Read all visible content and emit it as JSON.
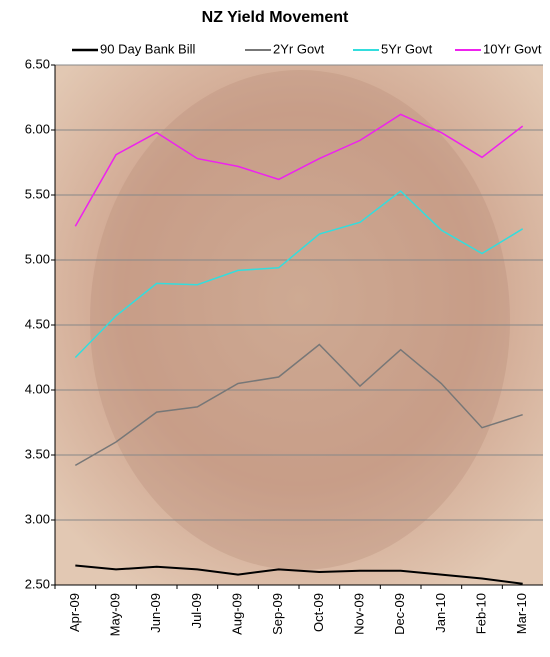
{
  "chart_data": {
    "type": "line",
    "title": "NZ Yield Movement",
    "categories": [
      "Apr-09",
      "May-09",
      "Jun-09",
      "Jul-09",
      "Aug-09",
      "Sep-09",
      "Oct-09",
      "Nov-09",
      "Dec-09",
      "Jan-10",
      "Feb-10",
      "Mar-10"
    ],
    "series": [
      {
        "name": "90 Day Bank Bill",
        "color": "#000000",
        "values": [
          2.65,
          2.62,
          2.64,
          2.62,
          2.58,
          2.62,
          2.6,
          2.61,
          2.61,
          2.58,
          2.55,
          2.51
        ]
      },
      {
        "name": "2Yr Govt",
        "color": "#777777",
        "values": [
          3.42,
          3.6,
          3.83,
          3.87,
          4.05,
          4.1,
          4.35,
          4.03,
          4.31,
          4.05,
          3.71,
          3.81
        ]
      },
      {
        "name": "5Yr Govt",
        "color": "#33dddd",
        "values": [
          4.25,
          4.57,
          4.82,
          4.81,
          4.92,
          4.94,
          5.2,
          5.29,
          5.53,
          5.23,
          5.05,
          5.24
        ]
      },
      {
        "name": "10Yr Govt",
        "color": "#ee22ee",
        "values": [
          5.26,
          5.81,
          5.98,
          5.78,
          5.72,
          5.62,
          5.78,
          5.92,
          6.12,
          5.98,
          5.79,
          6.03
        ]
      }
    ],
    "ylim": [
      2.5,
      6.5
    ],
    "yticks": [
      {
        "value": 2.5,
        "label": "2.50"
      },
      {
        "value": 3,
        "label": "3.00"
      },
      {
        "value": 3.5,
        "label": "3.50"
      },
      {
        "value": 4,
        "label": "4.00"
      },
      {
        "value": 4.5,
        "label": "4.50"
      },
      {
        "value": 5,
        "label": "5.00"
      },
      {
        "value": 5.5,
        "label": "5.50"
      },
      {
        "value": 6,
        "label": "6.00"
      },
      {
        "value": 6.5,
        "label": "6.50"
      }
    ],
    "grid": true,
    "legend": "top"
  }
}
